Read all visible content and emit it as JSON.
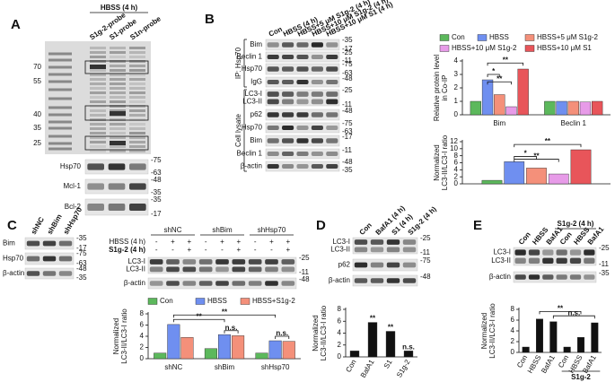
{
  "panels": [
    {
      "label": "A",
      "header": "HBSS (4 h)",
      "lanes": [
        "S1g-2-probe",
        "S1-probe",
        "S1n-probe"
      ],
      "ladder": [
        "70",
        "55",
        "40",
        "35",
        "25"
      ],
      "rows": [
        {
          "names": [
            "Hsp70"
          ],
          "markers": [
            "-75",
            "-63"
          ]
        },
        {
          "names": [
            "Mcl-1"
          ],
          "markers": [
            "-48",
            "-35"
          ]
        },
        {
          "names": [
            "Bcl-2"
          ],
          "markers": [
            "-35",
            "-17"
          ]
        }
      ]
    },
    {
      "label": "B",
      "lanes": [
        "Con",
        "HBSS (4 h)",
        "HBSS+5 μM S1g-2 (4 h)",
        "HBSS+10 μM S1g-2 (4 h)",
        "HBSS+10 μM S1 (4 h)"
      ],
      "groups": [
        "IP: Hsp70",
        "Cell lysate"
      ],
      "rows": [
        {
          "names": [
            "Bim"
          ],
          "markers": [
            "-35",
            "-17"
          ]
        },
        {
          "names": [
            "Beclin 1"
          ],
          "markers": [
            "-25",
            "-11"
          ]
        },
        {
          "names": [
            "Hsp70"
          ],
          "markers": [
            "-75",
            "-63"
          ]
        },
        {
          "names": [
            "IgG"
          ],
          "markers": [
            "-48"
          ]
        },
        {
          "names": [
            "LC3-I",
            "LC3-II"
          ],
          "markers": [
            "-25",
            "-11"
          ]
        },
        {
          "names": [
            "p62"
          ],
          "markers": [
            "-48"
          ]
        },
        {
          "names": [
            "Hsp70"
          ],
          "markers": [
            "-75",
            "-63"
          ]
        },
        {
          "names": [
            "Bim"
          ],
          "markers": [
            "-17"
          ]
        },
        {
          "names": [
            "Beclin 1"
          ],
          "markers": [
            "-11"
          ]
        },
        {
          "names": [
            "β-actin"
          ],
          "markers": [
            "-48",
            "-35"
          ]
        }
      ]
    },
    {
      "label": "C",
      "lanes": [
        "shNC",
        "shBim",
        "shHsp70"
      ],
      "rows": [
        {
          "names": [
            "Bim"
          ],
          "markers": [
            "-35",
            "-17"
          ]
        },
        {
          "names": [
            "Hsp70"
          ],
          "markers": [
            "-75",
            "-63"
          ]
        },
        {
          "names": [
            "β-actin"
          ],
          "markers": [
            "-48",
            "-35"
          ]
        }
      ]
    },
    {
      "groups": [
        "shNC",
        "shBim",
        "shHsp70"
      ],
      "conditions": [
        {
          "name": "HBSS (4 h)",
          "signs": [
            "-",
            "+",
            "+",
            "-",
            "+",
            "+",
            "-",
            "+",
            "+"
          ]
        },
        {
          "name": "S1g-2 (4 h)",
          "signs": [
            "-",
            "-",
            "+",
            "-",
            "-",
            "+",
            "-",
            "-",
            "+"
          ]
        }
      ],
      "rows": [
        {
          "names": [
            "LC3-I",
            "LC3-II"
          ],
          "markers": [
            "-25",
            "-11"
          ]
        },
        {
          "names": [
            "β-actin"
          ],
          "markers": [
            "-48"
          ]
        }
      ]
    },
    {
      "label": "D",
      "lanes": [
        "Con",
        "BafA1 (4 h)",
        "S1 (4 h)",
        "S1g-2 (4 h)"
      ],
      "rows": [
        {
          "names": [
            "LC3-I",
            "LC3-II"
          ],
          "markers": [
            "-25",
            "-11"
          ]
        },
        {
          "names": [
            "p62"
          ],
          "markers": [
            "-75"
          ]
        },
        {
          "names": [
            "β-actin"
          ],
          "markers": [
            "-48"
          ]
        }
      ]
    },
    {
      "label": "E",
      "header": "S1g-2 (4 h)",
      "lanes": [
        "Con",
        "HBSS",
        "BafA1",
        "Con",
        "HBSS",
        "BafA1"
      ],
      "rows": [
        {
          "names": [
            "LC3-I",
            "LC3-II"
          ],
          "markers": [
            "-25",
            "-11"
          ]
        },
        {
          "names": [
            "β-actin"
          ],
          "markers": [
            "-35"
          ]
        }
      ]
    }
  ],
  "chart_data": [
    {
      "type": "bar",
      "ylabel": [
        "Relative protein level",
        "in Co-IP"
      ],
      "categories": [
        "Bim",
        "Beclin 1"
      ],
      "ylim": [
        0,
        4
      ],
      "yticks": [
        0,
        1,
        2,
        3,
        4
      ],
      "series": [
        {
          "name": "Con",
          "color": "#5cb85c",
          "values": [
            1,
            1
          ]
        },
        {
          "name": "HBSS",
          "color": "#6f8ff0",
          "values": [
            2.6,
            1
          ]
        },
        {
          "name": "HBSS+5 μM S1g-2",
          "color": "#f4907a",
          "values": [
            1.5,
            1
          ]
        },
        {
          "name": "HBSS+10 μM S1g-2",
          "color": "#e79be8",
          "values": [
            0.6,
            0.95
          ]
        },
        {
          "name": "HBSS+10 μM S1",
          "color": "#e8555a",
          "values": [
            3.4,
            1
          ]
        }
      ],
      "annotations": [
        "**",
        "*",
        "**"
      ]
    },
    {
      "type": "bar",
      "ylabel": [
        "Normalized",
        "LC3-II/LC3-I ratio"
      ],
      "categories": [
        null
      ],
      "ylim": [
        0,
        12
      ],
      "yticks": [
        0,
        2,
        4,
        6,
        8,
        10,
        12
      ],
      "series": [
        {
          "color": "#5cb85c",
          "values": [
            1
          ]
        },
        {
          "color": "#6f8ff0",
          "values": [
            6.3
          ]
        },
        {
          "color": "#f4907a",
          "values": [
            4.5
          ]
        },
        {
          "color": "#e79be8",
          "values": [
            2.8
          ]
        },
        {
          "color": "#e8555a",
          "values": [
            9.7
          ]
        }
      ],
      "annotations": [
        "**",
        "*",
        "**"
      ]
    },
    {
      "type": "bar",
      "ylabel": [
        "Normalized",
        "LC3-II/LC3-I ratio"
      ],
      "categories": [
        "shNC",
        "shBim",
        "shHsp70"
      ],
      "ylim": [
        0,
        8
      ],
      "yticks": [
        0,
        2,
        4,
        6,
        8
      ],
      "series": [
        {
          "name": "Con",
          "color": "#5cb85c",
          "values": [
            1,
            1.8,
            1
          ]
        },
        {
          "name": "HBSS",
          "color": "#6f8ff0",
          "values": [
            6.1,
            4.3,
            3.2
          ]
        },
        {
          "name": "HBSS+S1g-2",
          "color": "#f4907a",
          "values": [
            3.8,
            4.1,
            3.1
          ]
        }
      ],
      "annotations": [
        "**",
        "**",
        "n.s.",
        "n.s."
      ]
    },
    {
      "type": "bar",
      "ylabel": [
        "Normalized",
        "LC3-II/LC3-I ratio"
      ],
      "categories": [
        "Con",
        "BafA1",
        "S1",
        "S1g-2"
      ],
      "ylim": [
        0,
        8
      ],
      "yticks": [
        0,
        2,
        4,
        6,
        8
      ],
      "values": [
        1,
        5.8,
        4.3,
        1
      ],
      "color": "#111111",
      "annotations": [
        "**",
        "**",
        "n.s."
      ]
    },
    {
      "type": "bar",
      "ylabel": [
        "Normalized",
        "LC3-II/LC3-I ratio"
      ],
      "categories": [
        "Con",
        "HBSS",
        "BafA1",
        "Con",
        "HBSS",
        "BafA1"
      ],
      "ylim": [
        0,
        8
      ],
      "yticks": [
        0,
        2,
        4,
        6,
        8
      ],
      "values": [
        1,
        6.2,
        5.7,
        1,
        2.8,
        5.5
      ],
      "color": "#111111",
      "annotations": [
        "**",
        "n.s."
      ],
      "group_label": "S1g-2"
    }
  ]
}
